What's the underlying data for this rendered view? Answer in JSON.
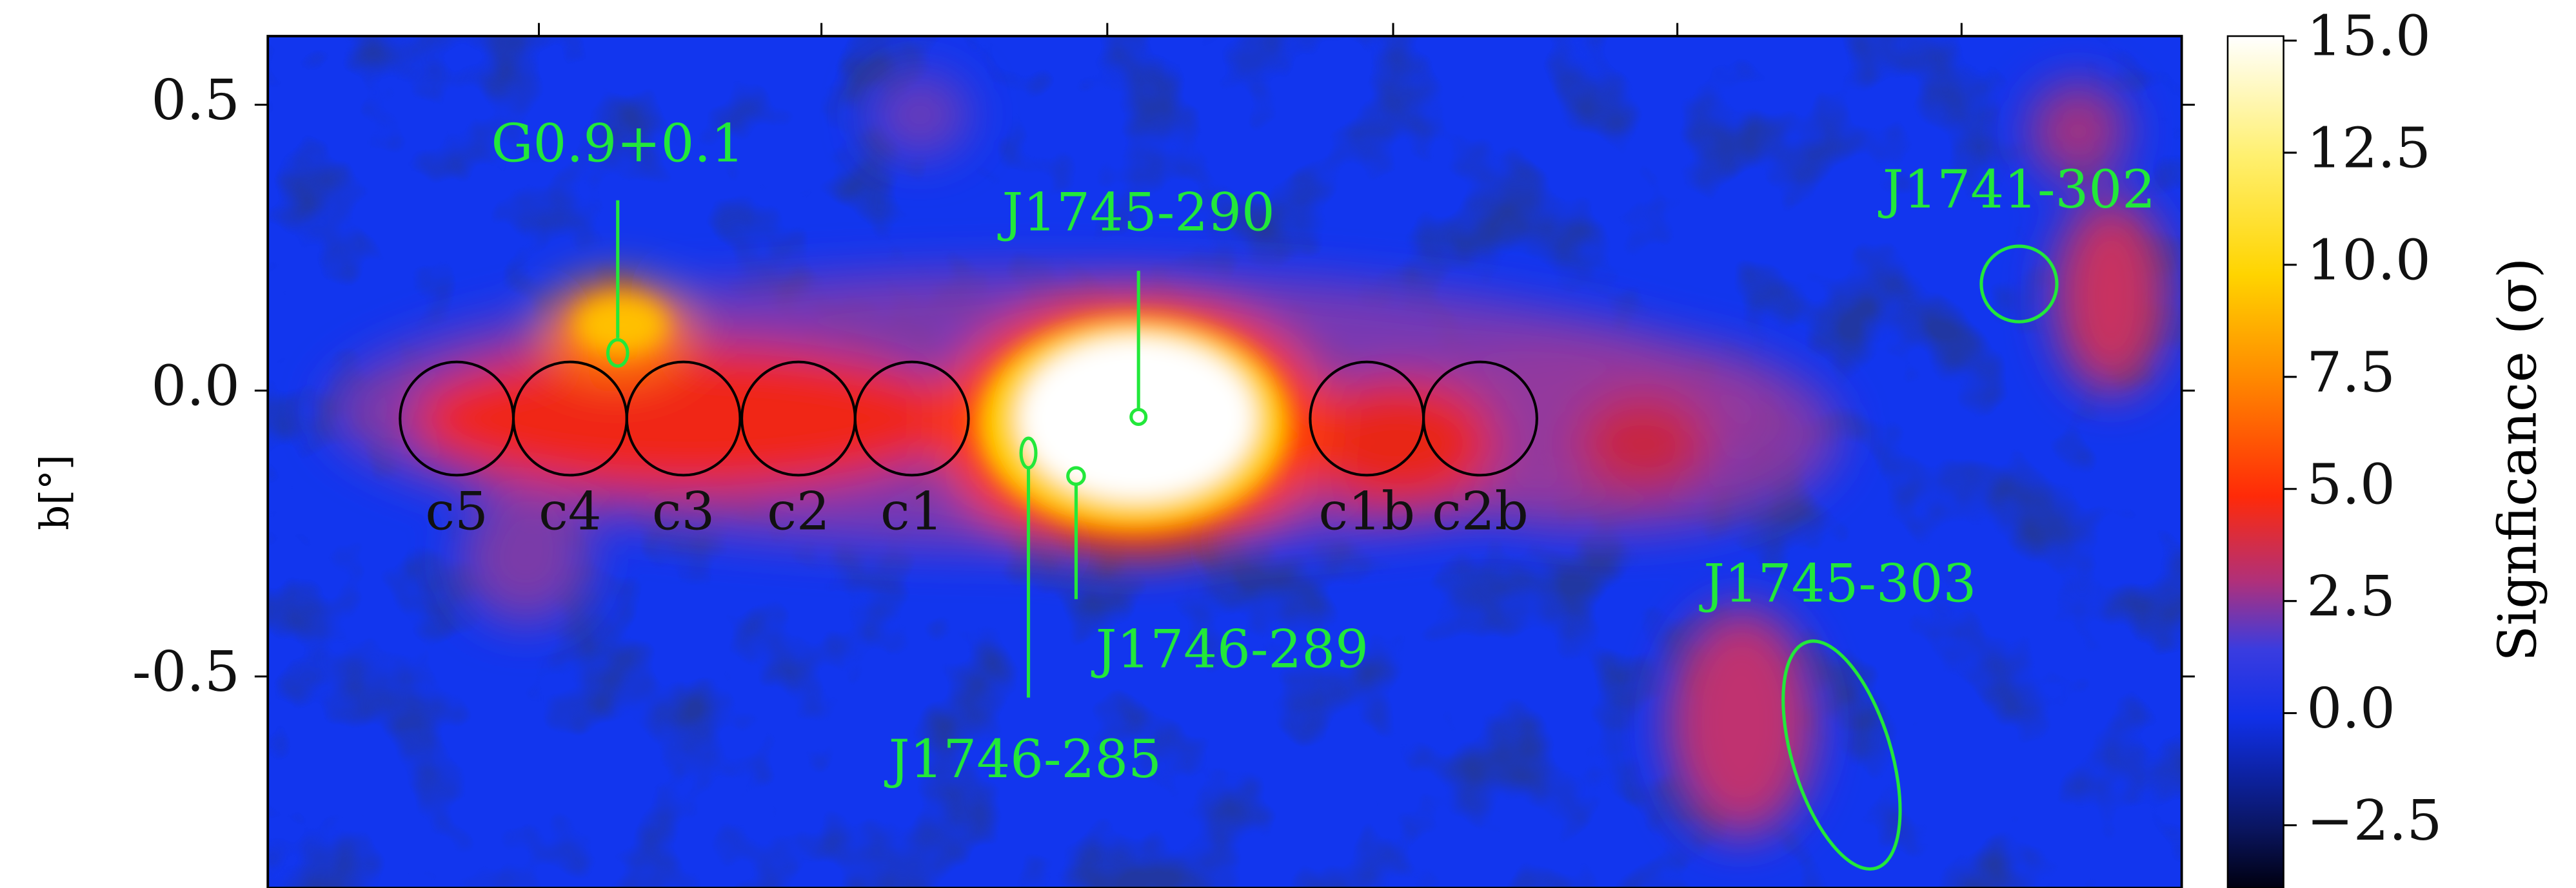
{
  "chart_data": {
    "type": "map",
    "ylabel": "b[°]",
    "ylim": [
      -0.87,
      0.62
    ],
    "yticks": [
      0.5,
      {
        "value": 0,
        "label": "0.0"
      },
      -0.5
    ],
    "colorbar": {
      "label": "Signficance (σ)",
      "lim": [
        -3.9,
        15.1
      ],
      "ticks": [
        {
          "value": 15,
          "label": "15.0"
        },
        12.5,
        {
          "value": 10,
          "label": "10.0"
        },
        7.5,
        {
          "value": 5,
          "label": "5.0"
        },
        2.5,
        {
          "value": 0,
          "label": "0.0"
        },
        {
          "value": -2.5,
          "label": "−2.5"
        }
      ]
    },
    "sources": [
      "G0.9+0.1",
      "J1745-290",
      "J1741-302",
      "J1745-303",
      "J1746-289",
      "J1746-285"
    ],
    "regions": [
      "c5",
      "c4",
      "c3",
      "c2",
      "c1",
      "c1b",
      "c2b"
    ]
  }
}
